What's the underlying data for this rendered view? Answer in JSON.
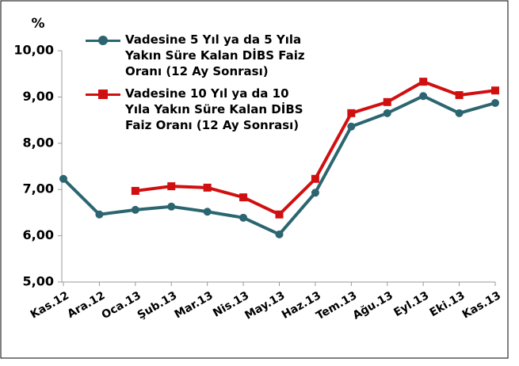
{
  "chart_data": {
    "type": "line",
    "y_label": "%",
    "categories": [
      "Kas.12",
      "Ara.12",
      "Oca.13",
      "Şub.13",
      "Mar.13",
      "Nis.13",
      "May.13",
      "Haz.13",
      "Tem.13",
      "Ağu.13",
      "Eyl.13",
      "Eki.13",
      "Kas.13"
    ],
    "series": [
      {
        "name": "Vadesine 5 Yıl ya da 5 Yıla Yakın Süre Kalan DİBS Faiz Oranı (12 Ay Sonrası)",
        "color": "#2b6670",
        "marker": "circle",
        "values": [
          7.23,
          6.46,
          6.56,
          6.63,
          6.52,
          6.39,
          6.03,
          6.93,
          8.36,
          8.65,
          9.02,
          8.65,
          8.87
        ]
      },
      {
        "name": "Vadesine 10 Yıl ya da 10 Yıla Yakın Süre Kalan DİBS Faiz Oranı (12 Ay Sonrası)",
        "color": "#d01010",
        "marker": "square",
        "values": [
          null,
          null,
          6.97,
          7.07,
          7.04,
          6.83,
          6.46,
          7.23,
          8.65,
          8.89,
          9.33,
          9.04,
          9.14
        ]
      }
    ],
    "ylim": [
      5,
      10
    ],
    "yticks": [
      {
        "value": 5,
        "label": "5,00"
      },
      {
        "value": 6,
        "label": "6,00"
      },
      {
        "value": 7,
        "label": "7,00"
      },
      {
        "value": 8,
        "label": "8,00"
      },
      {
        "value": 9,
        "label": "9,00"
      },
      {
        "value": 10,
        "label": "10,00"
      }
    ],
    "grid": false
  }
}
